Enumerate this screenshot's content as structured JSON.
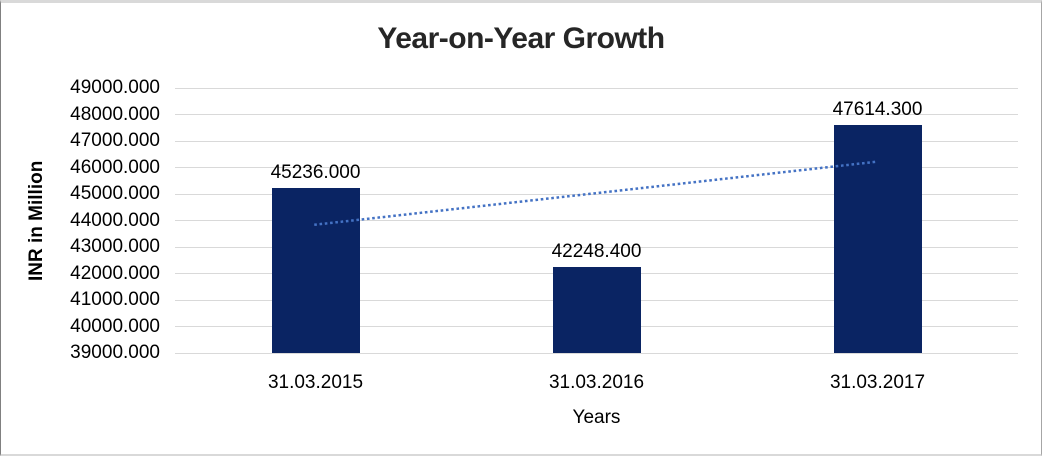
{
  "chart_data": {
    "type": "bar",
    "title": "Year-on-Year Growth",
    "xlabel": "Years",
    "ylabel": "INR in Million",
    "categories": [
      "31.03.2015",
      "31.03.2016",
      "31.03.2017"
    ],
    "values": [
      45236.0,
      42248.4,
      47614.3
    ],
    "data_labels": [
      "45236.000",
      "42248.400",
      "47614.300"
    ],
    "ylim": [
      39000,
      49000
    ],
    "ytick_step": 1000,
    "ytick_labels": [
      "49000.000",
      "48000.000",
      "47000.000",
      "46000.000",
      "45000.000",
      "44000.000",
      "43000.000",
      "42000.000",
      "41000.000",
      "40000.000",
      "39000.000"
    ],
    "grid": true,
    "legend": "none",
    "trendline": {
      "type": "linear",
      "style": "dotted"
    },
    "colors": {
      "bar": "#0A2463",
      "trendline": "#4472C4",
      "gridline": "#D9D9D9",
      "title_text": "#262626",
      "axis_text": "#000000"
    }
  }
}
